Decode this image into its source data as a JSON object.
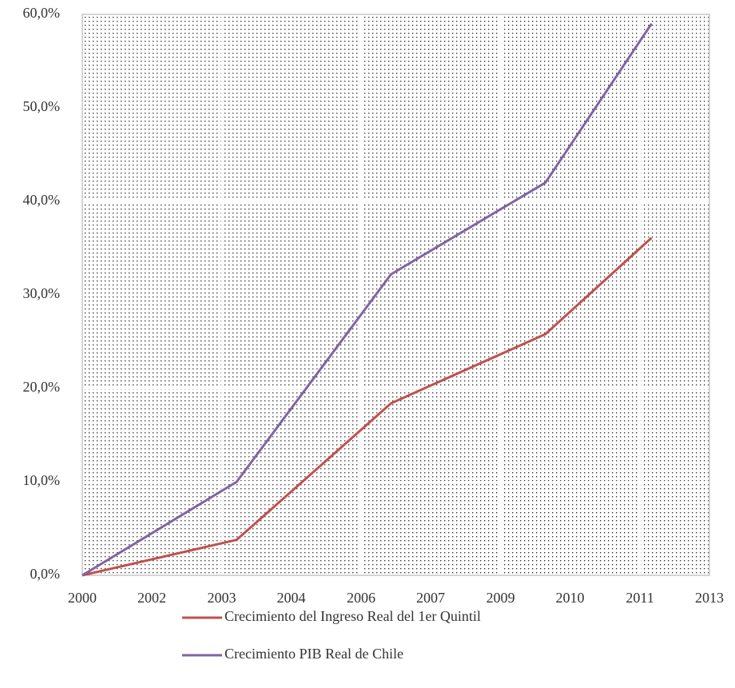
{
  "chart_data": {
    "type": "line",
    "x": [
      2000,
      2003.2,
      2006.4,
      2009.6,
      2011.8
    ],
    "series": [
      {
        "name": "Crecimiento del Ingreso Real del 1er Quintil",
        "color": "#c0504d",
        "values": [
          0,
          3.8,
          18.4,
          25.8,
          36.1
        ]
      },
      {
        "name": "Crecimiento PIB Real de Chile",
        "color": "#8064a2",
        "values": [
          0,
          10.0,
          32.2,
          42.0,
          59.0
        ]
      }
    ],
    "xlim": [
      2000,
      2013
    ],
    "xticks": [
      {
        "value": 2000,
        "label": "2000"
      },
      {
        "value": 2001.44,
        "label": "2002"
      },
      {
        "value": 2002.89,
        "label": "2003"
      },
      {
        "value": 2004.33,
        "label": "2004"
      },
      {
        "value": 2005.78,
        "label": "2006"
      },
      {
        "value": 2007.22,
        "label": "2007"
      },
      {
        "value": 2008.67,
        "label": "2009"
      },
      {
        "value": 2010.11,
        "label": "2010"
      },
      {
        "value": 2011.56,
        "label": "2011"
      },
      {
        "value": 2013,
        "label": "2013"
      }
    ],
    "ylim": [
      0,
      60
    ],
    "yticks": [
      {
        "value": 0,
        "label": "0,0%"
      },
      {
        "value": 10,
        "label": "10,0%"
      },
      {
        "value": 20,
        "label": "20,0%"
      },
      {
        "value": 30,
        "label": "30,0%"
      },
      {
        "value": 40,
        "label": "40,0%"
      },
      {
        "value": 50,
        "label": "50,0%"
      },
      {
        "value": 60,
        "label": "60,0%"
      }
    ],
    "grid": true,
    "legend": "bottom"
  }
}
